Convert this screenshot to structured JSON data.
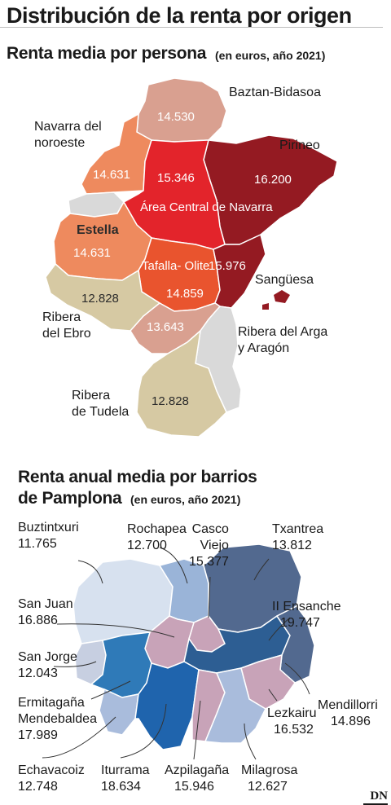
{
  "title": "Distribución de la renta por origen",
  "navarra": {
    "subtitle": "Renta media por persona",
    "note": "(en euros, año 2021)",
    "colors": {
      "darkest": "#941a22",
      "red": "#e3242b",
      "orange_red": "#e9542e",
      "salmon": "#ee8a5e",
      "pink": "#d9a090",
      "beige": "#d6c9a3",
      "grey": "#d9d9d9"
    },
    "regions": [
      {
        "name": "Baztan-Bidasoa",
        "value": "14.530"
      },
      {
        "name": "Navarra del noroeste",
        "name_line1": "Navarra del",
        "name_line2": "noroeste",
        "value": "14.631"
      },
      {
        "name": "Pirineo",
        "value": "16.200"
      },
      {
        "name": "Área Central de Navarra",
        "name_line1": "Área Central",
        "name_line2": "de Navarra",
        "value": "15.346"
      },
      {
        "name": "Estella",
        "value": "14.631"
      },
      {
        "name": "Tafalla-Olite",
        "name_line1": "Tafalla-",
        "name_line2": "Olite",
        "value": "14.859"
      },
      {
        "name": "Sangüesa",
        "value": "15.976"
      },
      {
        "name": "Ribera del Ebro",
        "name_line1": "Ribera",
        "name_line2": "del Ebro",
        "value": "12.828"
      },
      {
        "name": "Ribera del Arga y Aragón",
        "name_line1": "Ribera del Arga",
        "name_line2": "y Aragón",
        "value": "13.643"
      },
      {
        "name": "Ribera de Tudela",
        "name_line1": "Ribera",
        "name_line2": "de Tudela",
        "value": "12.828"
      }
    ]
  },
  "pamplona": {
    "subtitle_line1": "Renta anual media por barrios",
    "subtitle_line2": "de Pamplona",
    "note": "(en euros, año 2021)",
    "barrios": [
      {
        "name": "Buztintxuri",
        "value": "11.765"
      },
      {
        "name": "Rochapea",
        "value": "12.700"
      },
      {
        "name": "Casco Viejo",
        "name_line1": "Casco",
        "name_line2": "Viejo",
        "value": "15.377"
      },
      {
        "name": "Txantrea",
        "value": "13.812"
      },
      {
        "name": "San Juan",
        "value": "16.886"
      },
      {
        "name": "II Ensanche",
        "value": "19.747"
      },
      {
        "name": "San Jorge",
        "value": "12.043"
      },
      {
        "name": "Mendillorri",
        "value": "14.896"
      },
      {
        "name": "Ermitagaña Mendebaldea",
        "name_line1": "Ermitagaña",
        "name_line2": "Mendebaldea",
        "value": "17.989"
      },
      {
        "name": "Lezkairu",
        "value": "16.532"
      },
      {
        "name": "Echavacoiz",
        "value": "12.748"
      },
      {
        "name": "Iturrama",
        "value": "18.634"
      },
      {
        "name": "Azpilagaña",
        "value": "15.946"
      },
      {
        "name": "Milagrosa",
        "value": "12.627"
      }
    ]
  },
  "logo": "DN"
}
